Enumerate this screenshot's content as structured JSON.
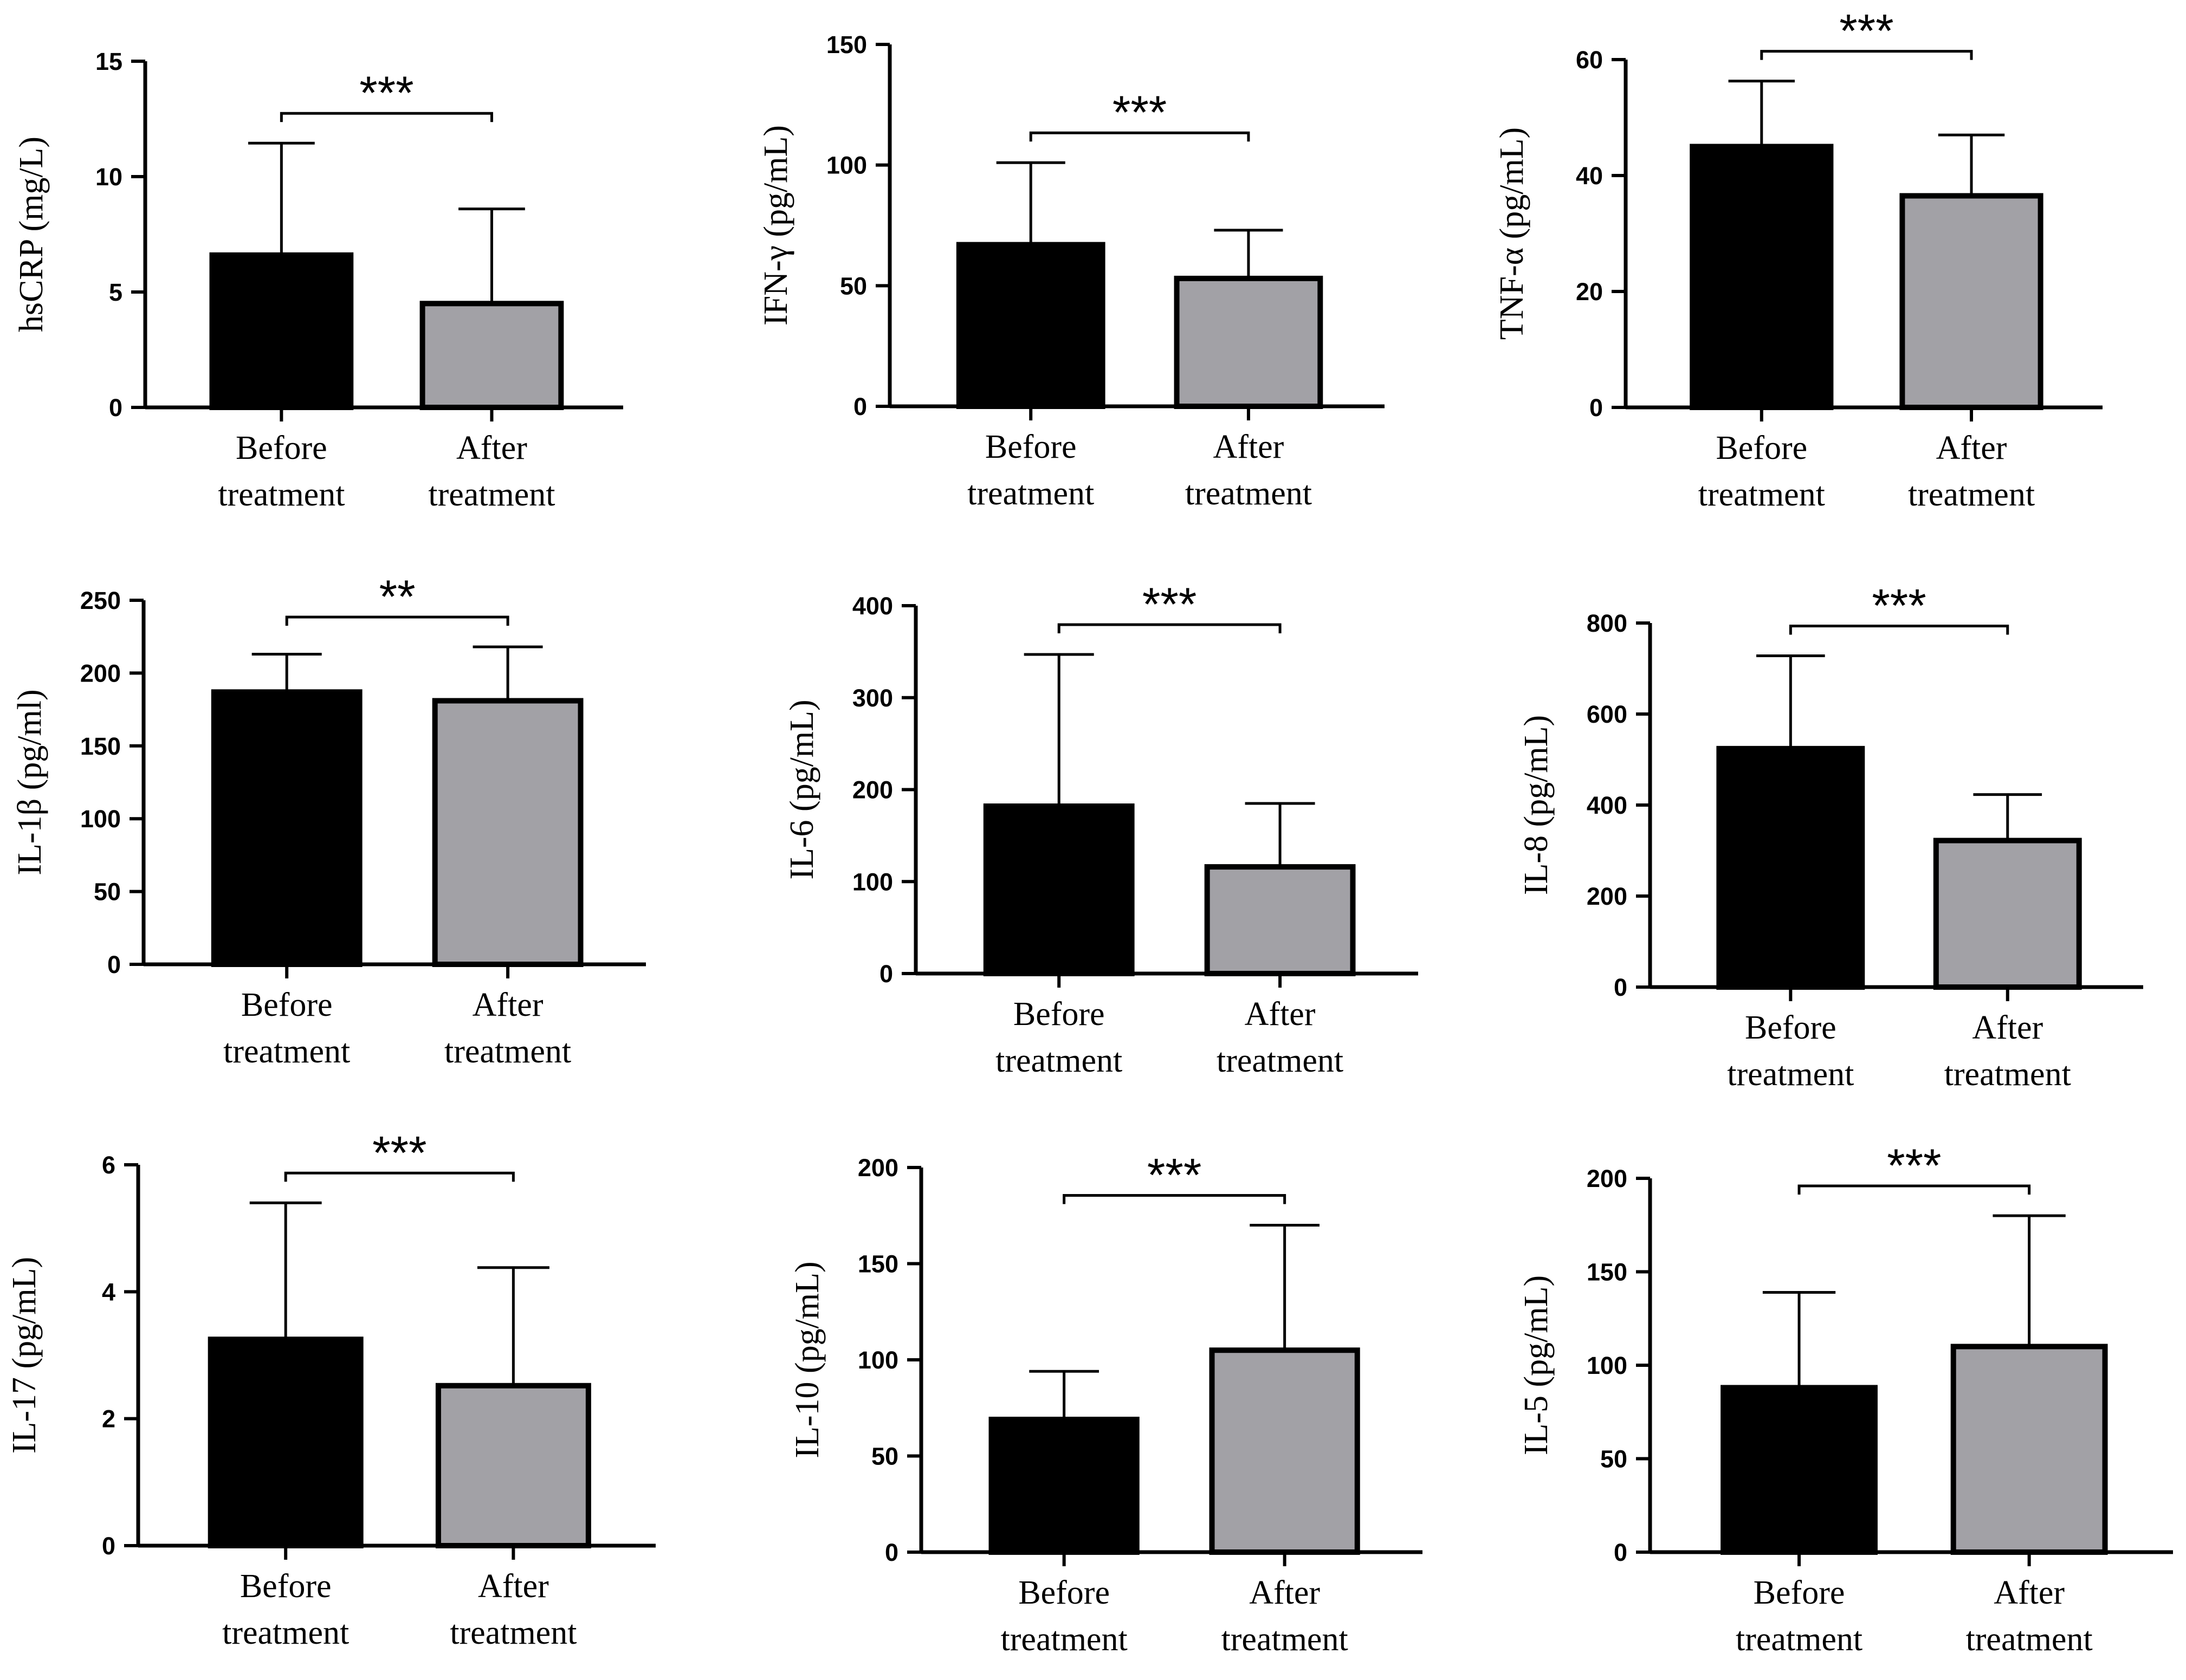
{
  "colors": {
    "before": "#000000",
    "after": "#a2a1a6",
    "axis": "#000000"
  },
  "chart_data": [
    {
      "type": "bar",
      "ylabel": "hsCRP (mg/L)",
      "categories": [
        "Before\ntreatment",
        "After\ntreatment"
      ],
      "values": [
        6.6,
        4.5
      ],
      "errors": [
        4.85,
        4.1
      ],
      "ylim": [
        0,
        15
      ],
      "yticks": [
        0,
        5,
        10,
        15
      ],
      "significance": "***"
    },
    {
      "type": "bar",
      "ylabel": "IFN-γ (pg/mL)",
      "categories": [
        "Before\ntreatment",
        "After\ntreatment"
      ],
      "values": [
        67,
        53
      ],
      "errors": [
        34,
        20
      ],
      "ylim": [
        0,
        150
      ],
      "yticks": [
        0,
        50,
        100,
        150
      ],
      "significance": "***"
    },
    {
      "type": "bar",
      "ylabel": "TNF-α (pg/mL)",
      "categories": [
        "Before\ntreatment",
        "After\ntreatment"
      ],
      "values": [
        45,
        36.5
      ],
      "errors": [
        11.3,
        10.5
      ],
      "ylim": [
        0,
        60
      ],
      "yticks": [
        0,
        20,
        40,
        60
      ],
      "significance": "***"
    },
    {
      "type": "bar",
      "ylabel": "IL-1β (pg/ml)",
      "categories": [
        "Before\ntreatment",
        "After\ntreatment"
      ],
      "values": [
        187,
        181
      ],
      "errors": [
        26,
        37
      ],
      "ylim": [
        0,
        250
      ],
      "yticks": [
        0,
        50,
        100,
        150,
        200,
        250
      ],
      "significance": "**"
    },
    {
      "type": "bar",
      "ylabel": "IL-6 (pg/mL)",
      "categories": [
        "Before\ntreatment",
        "After\ntreatment"
      ],
      "values": [
        182,
        116
      ],
      "errors": [
        165,
        69
      ],
      "ylim": [
        0,
        400
      ],
      "yticks": [
        0,
        100,
        200,
        300,
        400
      ],
      "significance": "***"
    },
    {
      "type": "bar",
      "ylabel": "IL-8 (pg/mL)",
      "categories": [
        "Before\ntreatment",
        "After\ntreatment"
      ],
      "values": [
        524,
        322
      ],
      "errors": [
        204,
        101
      ],
      "ylim": [
        0,
        800
      ],
      "yticks": [
        0,
        200,
        400,
        600,
        800
      ],
      "significance": "***"
    },
    {
      "type": "bar",
      "ylabel": "IL-17 (pg/mL)",
      "categories": [
        "Before\ntreatment",
        "After\ntreatment"
      ],
      "values": [
        3.25,
        2.52
      ],
      "errors": [
        2.15,
        1.86
      ],
      "ylim": [
        0,
        6
      ],
      "yticks": [
        0,
        2,
        4,
        6
      ],
      "significance": "***"
    },
    {
      "type": "bar",
      "ylabel": "IL-10 (pg/mL)",
      "categories": [
        "Before\ntreatment",
        "After\ntreatment"
      ],
      "values": [
        69,
        105
      ],
      "errors": [
        25,
        65
      ],
      "ylim": [
        0,
        200
      ],
      "yticks": [
        0,
        50,
        100,
        150,
        200
      ],
      "significance": "***"
    },
    {
      "type": "bar",
      "ylabel": "IL-5 (pg/mL)",
      "categories": [
        "Before\ntreatment",
        "After\ntreatment"
      ],
      "values": [
        88,
        110
      ],
      "errors": [
        51,
        70
      ],
      "ylim": [
        0,
        200
      ],
      "yticks": [
        0,
        50,
        100,
        150,
        200
      ],
      "significance": "***"
    }
  ]
}
